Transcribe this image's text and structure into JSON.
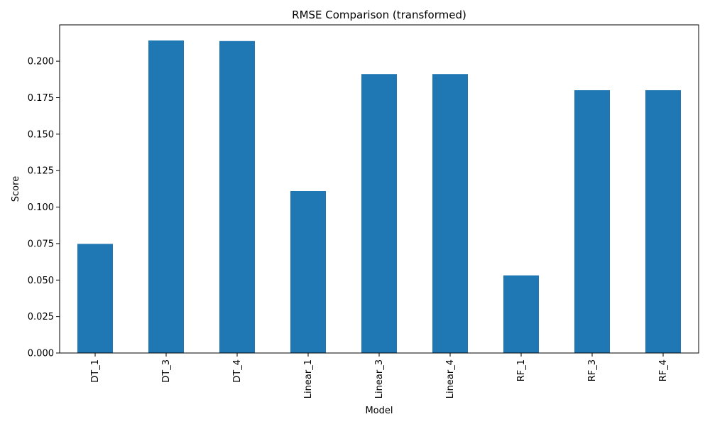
{
  "chart_data": {
    "type": "bar",
    "title": "RMSE Comparison (transformed)",
    "xlabel": "Model",
    "ylabel": "Score",
    "categories": [
      "DT_1",
      "DT_3",
      "DT_4",
      "Linear_1",
      "Linear_3",
      "Linear_4",
      "RF_1",
      "RF_3",
      "RF_4"
    ],
    "values": [
      0.0748,
      0.2142,
      0.2138,
      0.111,
      0.1912,
      0.1912,
      0.0532,
      0.1801,
      0.1801
    ],
    "ylim": [
      0,
      0.2249
    ],
    "yticks": [
      0.0,
      0.025,
      0.05,
      0.075,
      0.1,
      0.125,
      0.15,
      0.175,
      0.2
    ],
    "ytick_labels": [
      "0.000",
      "0.025",
      "0.050",
      "0.075",
      "0.100",
      "0.125",
      "0.150",
      "0.175",
      "0.200"
    ],
    "bar_color": "#1f77b4",
    "grid": false,
    "legend": "none"
  }
}
